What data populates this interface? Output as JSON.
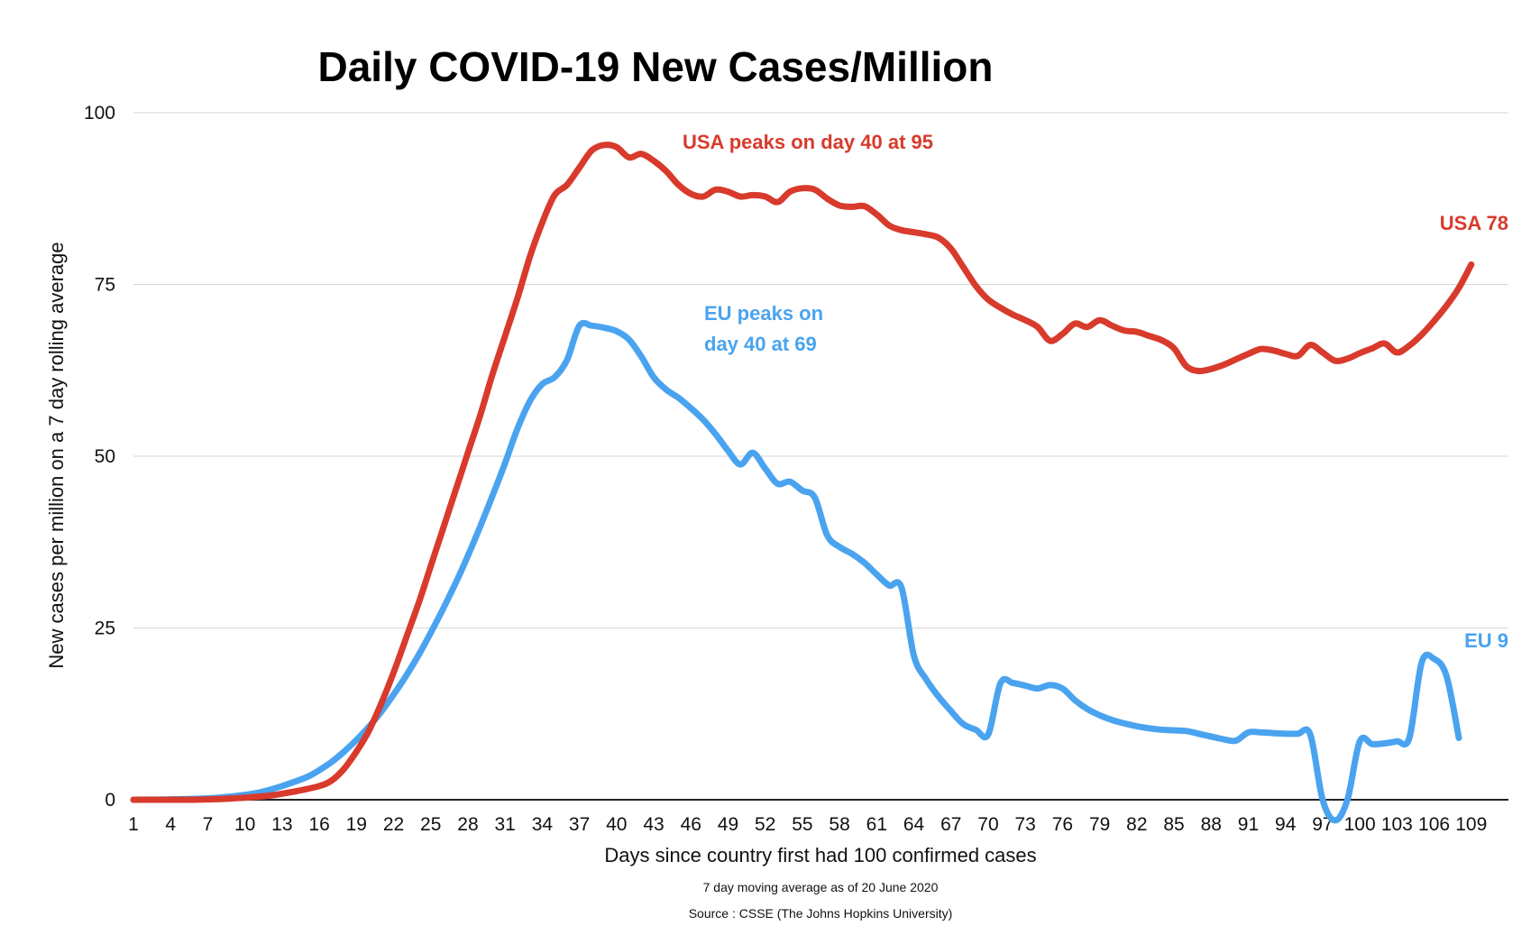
{
  "chart_data": {
    "type": "line",
    "title": "Daily COVID-19 New Cases/Million",
    "xlabel": "Days since country first had 100 confirmed cases",
    "ylabel": "New cases  per million on a 7 day rolling average",
    "subtitle_lines": [
      "7 day moving average as of 20 June 2020",
      "Source : CSSE (The Johns Hopkins University)"
    ],
    "xlim": [
      1,
      112
    ],
    "ylim": [
      0,
      100
    ],
    "x_tick_labels": [
      "1",
      "4",
      "7",
      "10",
      "13",
      "16",
      "19",
      "22",
      "25",
      "28",
      "31",
      "34",
      "37",
      "40",
      "43",
      "46",
      "49",
      "52",
      "55",
      "58",
      "61",
      "64",
      "67",
      "70",
      "73",
      "76",
      "79",
      "82",
      "85",
      "88",
      "91",
      "94",
      "97",
      "100",
      "103",
      "106",
      "109"
    ],
    "y_tick_labels": [
      "0",
      "25",
      "50",
      "75",
      "100"
    ],
    "y_ticks": [
      0,
      25,
      50,
      75,
      100
    ],
    "grid": true,
    "colors": {
      "usa": "#d83a2c",
      "eu": "#4aa3ef"
    },
    "series": [
      {
        "name": "USA",
        "color": "#d83a2c",
        "points": [
          [
            1,
            0
          ],
          [
            5,
            0
          ],
          [
            8,
            0.1
          ],
          [
            10,
            0.3
          ],
          [
            12,
            0.6
          ],
          [
            14,
            1.2
          ],
          [
            16,
            2
          ],
          [
            17,
            2.8
          ],
          [
            18,
            4.5
          ],
          [
            19,
            7
          ],
          [
            20,
            10
          ],
          [
            21,
            14
          ],
          [
            22,
            18.5
          ],
          [
            23,
            23.5
          ],
          [
            24,
            28.5
          ],
          [
            25,
            34
          ],
          [
            26,
            39.5
          ],
          [
            27,
            45
          ],
          [
            28,
            50.5
          ],
          [
            29,
            56
          ],
          [
            30,
            62
          ],
          [
            31,
            67.5
          ],
          [
            32,
            73
          ],
          [
            33,
            79
          ],
          [
            34,
            84
          ],
          [
            35,
            88
          ],
          [
            36,
            89.5
          ],
          [
            37,
            92
          ],
          [
            38,
            94.5
          ],
          [
            39,
            95.3
          ],
          [
            40,
            95
          ],
          [
            41,
            93.5
          ],
          [
            42,
            94
          ],
          [
            43,
            93
          ],
          [
            44,
            91.5
          ],
          [
            45,
            89.5
          ],
          [
            46,
            88.2
          ],
          [
            47,
            87.8
          ],
          [
            48,
            88.8
          ],
          [
            49,
            88.5
          ],
          [
            50,
            87.8
          ],
          [
            51,
            88
          ],
          [
            52,
            87.8
          ],
          [
            53,
            87
          ],
          [
            54,
            88.5
          ],
          [
            55,
            89
          ],
          [
            56,
            88.8
          ],
          [
            57,
            87.5
          ],
          [
            58,
            86.5
          ],
          [
            59,
            86.3
          ],
          [
            60,
            86.4
          ],
          [
            61,
            85.2
          ],
          [
            62,
            83.6
          ],
          [
            63,
            82.9
          ],
          [
            64,
            82.6
          ],
          [
            65,
            82.3
          ],
          [
            66,
            81.8
          ],
          [
            67,
            80.2
          ],
          [
            68,
            77.5
          ],
          [
            69,
            74.8
          ],
          [
            70,
            72.8
          ],
          [
            71,
            71.6
          ],
          [
            72,
            70.6
          ],
          [
            73,
            69.8
          ],
          [
            74,
            68.8
          ],
          [
            75,
            66.8
          ],
          [
            76,
            67.8
          ],
          [
            77,
            69.3
          ],
          [
            78,
            68.8
          ],
          [
            79,
            69.8
          ],
          [
            80,
            69
          ],
          [
            81,
            68.3
          ],
          [
            82,
            68.1
          ],
          [
            83,
            67.5
          ],
          [
            84,
            66.9
          ],
          [
            85,
            65.7
          ],
          [
            86,
            63.1
          ],
          [
            87,
            62.4
          ],
          [
            88,
            62.7
          ],
          [
            89,
            63.3
          ],
          [
            90,
            64.1
          ],
          [
            91,
            64.9
          ],
          [
            92,
            65.6
          ],
          [
            93,
            65.4
          ],
          [
            94,
            64.9
          ],
          [
            95,
            64.6
          ],
          [
            96,
            66.2
          ],
          [
            97,
            65.1
          ],
          [
            98,
            63.9
          ],
          [
            99,
            64.2
          ],
          [
            100,
            65
          ],
          [
            101,
            65.7
          ],
          [
            102,
            66.4
          ],
          [
            103,
            65.1
          ],
          [
            104,
            66.1
          ],
          [
            105,
            67.7
          ],
          [
            106,
            69.7
          ],
          [
            107,
            71.9
          ],
          [
            108,
            74.5
          ],
          [
            109,
            77.9
          ]
        ]
      },
      {
        "name": "EU",
        "color": "#4aa3ef",
        "points": [
          [
            1,
            0
          ],
          [
            4,
            0.05
          ],
          [
            7,
            0.2
          ],
          [
            9,
            0.5
          ],
          [
            11,
            1
          ],
          [
            13,
            2
          ],
          [
            15,
            3.3
          ],
          [
            16,
            4.3
          ],
          [
            17,
            5.5
          ],
          [
            18,
            7
          ],
          [
            19,
            8.7
          ],
          [
            20,
            10.6
          ],
          [
            21,
            12.8
          ],
          [
            22,
            15.3
          ],
          [
            23,
            18
          ],
          [
            24,
            21
          ],
          [
            25,
            24.3
          ],
          [
            26,
            27.8
          ],
          [
            27,
            31.5
          ],
          [
            28,
            35.5
          ],
          [
            29,
            39.8
          ],
          [
            30,
            44.3
          ],
          [
            31,
            49
          ],
          [
            32,
            54
          ],
          [
            33,
            58
          ],
          [
            34,
            60.5
          ],
          [
            35,
            61.5
          ],
          [
            36,
            64
          ],
          [
            37,
            69
          ],
          [
            38,
            69
          ],
          [
            39,
            68.7
          ],
          [
            40,
            68.2
          ],
          [
            41,
            67
          ],
          [
            42,
            64.5
          ],
          [
            43,
            61.5
          ],
          [
            44,
            59.7
          ],
          [
            45,
            58.5
          ],
          [
            46,
            57
          ],
          [
            47,
            55.3
          ],
          [
            48,
            53.2
          ],
          [
            49,
            50.8
          ],
          [
            50,
            48.8
          ],
          [
            51,
            50.5
          ],
          [
            52,
            48.2
          ],
          [
            53,
            46
          ],
          [
            54,
            46.3
          ],
          [
            55,
            45
          ],
          [
            56,
            44
          ],
          [
            57,
            38.5
          ],
          [
            58,
            36.8
          ],
          [
            59,
            35.8
          ],
          [
            60,
            34.5
          ],
          [
            61,
            32.8
          ],
          [
            62,
            31.2
          ],
          [
            63,
            30.9
          ],
          [
            64,
            21
          ],
          [
            65,
            17.5
          ],
          [
            66,
            15
          ],
          [
            67,
            12.9
          ],
          [
            68,
            11
          ],
          [
            69,
            10.2
          ],
          [
            70,
            9.5
          ],
          [
            71,
            17
          ],
          [
            72,
            17
          ],
          [
            73,
            16.6
          ],
          [
            74,
            16.2
          ],
          [
            75,
            16.7
          ],
          [
            76,
            16.2
          ],
          [
            77,
            14.5
          ],
          [
            78,
            13.2
          ],
          [
            79,
            12.3
          ],
          [
            80,
            11.6
          ],
          [
            81,
            11.1
          ],
          [
            82,
            10.7
          ],
          [
            83,
            10.4
          ],
          [
            84,
            10.2
          ],
          [
            85,
            10.1
          ],
          [
            86,
            10
          ],
          [
            87,
            9.6
          ],
          [
            88,
            9.2
          ],
          [
            89,
            8.8
          ],
          [
            90,
            8.6
          ],
          [
            91,
            9.8
          ],
          [
            92,
            9.8
          ],
          [
            93,
            9.7
          ],
          [
            94,
            9.6
          ],
          [
            95,
            9.6
          ],
          [
            96,
            9.5
          ],
          [
            97,
            0
          ],
          [
            98,
            -3
          ],
          [
            99,
            0
          ],
          [
            100,
            8.5
          ],
          [
            101,
            8.1
          ],
          [
            102,
            8.2
          ],
          [
            103,
            8.5
          ],
          [
            104,
            9
          ],
          [
            105,
            20
          ],
          [
            106,
            20.5
          ],
          [
            107,
            18
          ],
          [
            108,
            9
          ]
        ]
      }
    ],
    "annotations": [
      {
        "text": "USA peaks on day 40 at 95",
        "series": "USA"
      },
      {
        "text": "EU peaks on",
        "series": "EU"
      },
      {
        "text": "day 40 at 69",
        "series": "EU"
      },
      {
        "text": "USA 78",
        "series": "USA"
      },
      {
        "text": "EU 9",
        "series": "EU"
      }
    ]
  }
}
